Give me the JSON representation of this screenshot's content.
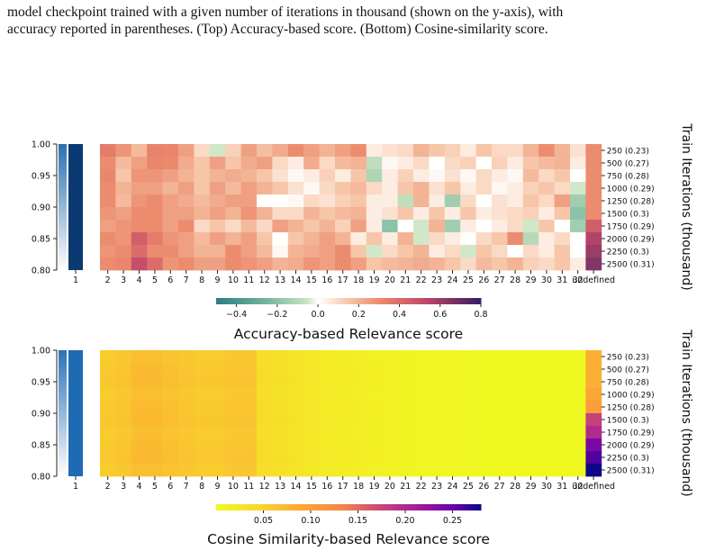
{
  "caption": {
    "line1": "model checkpoint trained with a given number of iterations in thousand (shown on the y-axis), with",
    "line2": "accuracy reported in parentheses. (Top) Accuracy-based score. (Bottom) Cosine-similarity score."
  },
  "chart_data": [
    {
      "type": "heatmap",
      "title": "Accuracy-based Relevance score",
      "ylabel_right": "Train Iterations (thousand)",
      "layers": [
        1,
        2,
        3,
        4,
        5,
        6,
        7,
        8,
        9,
        10,
        11,
        12,
        13,
        14,
        15,
        16,
        17,
        18,
        19,
        20,
        21,
        22,
        23,
        24,
        25,
        26,
        27,
        28,
        29,
        30,
        31,
        32
      ],
      "rows": [
        "250 (0.23)",
        "500 (0.27)",
        "750 (0.28)",
        "1000 (0.29)",
        "1250 (0.28)",
        "1500 (0.3)",
        "1750 (0.29)",
        "2000 (0.29)",
        "2250 (0.3)",
        "2500 (0.31)"
      ],
      "left_axis_ticks": [
        "1.00",
        "0.95",
        "0.90",
        "0.85",
        "0.80"
      ],
      "left_axis_range": [
        0.8,
        1.0
      ],
      "colorbar": {
        "colormap": "diverging teal-white-salmon-purple",
        "ticks": [
          "−0.4",
          "−0.2",
          "0.0",
          "0.2",
          "0.4",
          "0.6",
          "0.8"
        ],
        "range": [
          -0.5,
          0.8
        ]
      },
      "layer1_value": 0.9,
      "layer32_values": [
        0.3,
        0.3,
        0.3,
        0.3,
        0.3,
        0.3,
        0.45,
        0.55,
        0.6,
        0.65
      ],
      "values": [
        [
          0.35,
          0.28,
          0.18,
          0.33,
          0.32,
          0.25,
          0.1,
          -0.05,
          0.12,
          0.25,
          0.17,
          0.22,
          0.3,
          0.25,
          0.2,
          0.25,
          0.3,
          0.05,
          0.08,
          0.1,
          0.2,
          0.15,
          0.12,
          0.05,
          0.15,
          0.1,
          0.1,
          0.2,
          0.3,
          0.2,
          0.08
        ],
        [
          0.3,
          0.18,
          0.25,
          0.32,
          0.31,
          0.22,
          0.15,
          0.25,
          0.15,
          0.22,
          0.25,
          0.1,
          0.05,
          0.22,
          0.1,
          0.18,
          0.2,
          -0.08,
          0.02,
          0.05,
          0.1,
          0.0,
          0.1,
          0.12,
          0.0,
          0.12,
          0.05,
          0.15,
          0.18,
          0.2,
          0.05
        ],
        [
          0.32,
          0.15,
          0.28,
          0.28,
          0.25,
          0.2,
          0.15,
          0.2,
          0.22,
          0.2,
          0.15,
          0.08,
          0.02,
          0.05,
          0.12,
          0.05,
          0.15,
          -0.12,
          0.05,
          0.12,
          0.05,
          0.02,
          0.08,
          0.02,
          0.1,
          0.05,
          0.02,
          0.18,
          0.1,
          0.15,
          0.0
        ],
        [
          0.3,
          0.2,
          0.25,
          0.25,
          0.2,
          0.25,
          0.15,
          0.25,
          0.18,
          0.25,
          0.2,
          0.15,
          0.08,
          0.02,
          0.1,
          0.15,
          0.18,
          0.1,
          0.05,
          0.15,
          0.2,
          0.08,
          0.15,
          0.05,
          0.1,
          0.02,
          0.05,
          0.12,
          0.15,
          0.1,
          -0.05
        ],
        [
          0.3,
          0.18,
          0.28,
          0.3,
          0.25,
          0.22,
          0.18,
          0.22,
          0.25,
          0.25,
          0.0,
          0.0,
          0.02,
          0.1,
          0.08,
          0.12,
          0.15,
          0.05,
          0.05,
          -0.08,
          0.2,
          0.05,
          -0.15,
          0.1,
          0.0,
          0.08,
          0.05,
          0.15,
          0.1,
          0.25,
          -0.15
        ],
        [
          0.28,
          0.25,
          0.3,
          0.3,
          0.25,
          0.25,
          0.2,
          0.25,
          0.2,
          0.28,
          0.2,
          0.1,
          0.1,
          0.2,
          0.15,
          0.18,
          0.2,
          0.05,
          0.08,
          0.15,
          0.05,
          0.15,
          0.05,
          0.15,
          0.05,
          0.08,
          0.1,
          0.12,
          0.05,
          0.15,
          -0.2
        ],
        [
          0.25,
          0.28,
          0.3,
          0.3,
          0.25,
          0.3,
          0.1,
          0.15,
          0.1,
          0.18,
          0.1,
          0.25,
          0.2,
          0.15,
          0.2,
          0.12,
          0.25,
          0.05,
          -0.2,
          0.0,
          -0.05,
          0.2,
          -0.15,
          0.05,
          0.0,
          0.05,
          0.1,
          -0.05,
          0.15,
          0.0,
          -0.15
        ],
        [
          0.3,
          0.28,
          0.45,
          0.35,
          0.28,
          0.25,
          0.18,
          0.25,
          0.2,
          0.25,
          0.15,
          0.0,
          0.15,
          0.2,
          0.25,
          0.2,
          0.05,
          0.15,
          0.05,
          0.2,
          -0.05,
          0.1,
          0.05,
          0.0,
          0.1,
          0.15,
          0.3,
          -0.1,
          0.05,
          0.1,
          0.0
        ],
        [
          0.28,
          0.3,
          0.4,
          0.3,
          0.3,
          0.25,
          0.2,
          0.2,
          0.3,
          0.25,
          0.18,
          0.02,
          0.2,
          0.22,
          0.25,
          0.3,
          0.15,
          -0.05,
          0.1,
          0.15,
          0.2,
          0.05,
          0.1,
          -0.05,
          0.15,
          0.1,
          0.0,
          0.1,
          0.05,
          0.15,
          0.0
        ],
        [
          0.3,
          0.32,
          0.5,
          0.4,
          0.28,
          0.3,
          0.25,
          0.25,
          0.3,
          0.28,
          0.25,
          0.2,
          0.22,
          0.28,
          0.25,
          0.3,
          0.25,
          0.15,
          0.18,
          0.2,
          0.22,
          0.2,
          0.15,
          0.1,
          0.18,
          0.15,
          0.2,
          0.12,
          0.1,
          0.15,
          0.05
        ]
      ]
    },
    {
      "type": "heatmap",
      "title": "Cosine Similarity-based Relevance score",
      "ylabel_right": "Train Iterations (thousand)",
      "layers": [
        1,
        2,
        3,
        4,
        5,
        6,
        7,
        8,
        9,
        10,
        11,
        12,
        13,
        14,
        15,
        16,
        17,
        18,
        19,
        20,
        21,
        22,
        23,
        24,
        25,
        26,
        27,
        28,
        29,
        30,
        31,
        32
      ],
      "rows": [
        "250 (0.23)",
        "500 (0.27)",
        "750 (0.28)",
        "1000 (0.29)",
        "1250 (0.28)",
        "1500 (0.3)",
        "1750 (0.29)",
        "2000 (0.29)",
        "2250 (0.3)",
        "2500 (0.31)"
      ],
      "left_axis_ticks": [
        "1.00",
        "0.95",
        "0.90",
        "0.85",
        "0.80"
      ],
      "left_axis_range": [
        0.8,
        1.0
      ],
      "colorbar": {
        "colormap": "plasma (reversed)",
        "ticks": [
          "0.05",
          "0.10",
          "0.15",
          "0.20",
          "0.25"
        ],
        "range": [
          0.0,
          0.28
        ]
      },
      "layer1_value": 0.9,
      "layer32_values": [
        0.08,
        0.08,
        0.08,
        0.09,
        0.1,
        0.18,
        0.2,
        0.24,
        0.26,
        0.28
      ],
      "profile": [
        0.06,
        0.065,
        0.075,
        0.075,
        0.07,
        0.065,
        0.06,
        0.06,
        0.065,
        0.065,
        0.04,
        0.035,
        0.03,
        0.025,
        0.02,
        0.018,
        0.015,
        0.012,
        0.01,
        0.008,
        0.006,
        0.005,
        0.004,
        0.003,
        0.002,
        0.002,
        0.001,
        0.001,
        0.001,
        0.001,
        0.001
      ]
    }
  ]
}
